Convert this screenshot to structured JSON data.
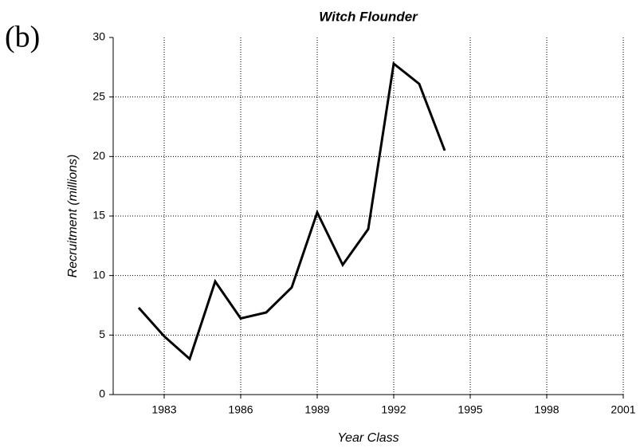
{
  "chart_data": {
    "type": "line",
    "title": "Witch Flounder",
    "annotation": "(b)",
    "x_label": "Year Class",
    "y_label": "Recruitment (millions)",
    "x": [
      1982,
      1983,
      1984,
      1985,
      1986,
      1987,
      1988,
      1989,
      1990,
      1991,
      1992,
      1993,
      1994
    ],
    "series": [
      {
        "name": "Witch Flounder",
        "color": "#000000",
        "values": [
          7.3,
          4.9,
          3.0,
          9.5,
          6.4,
          6.9,
          9.0,
          15.3,
          10.9,
          13.9,
          27.8,
          26.1,
          20.5
        ]
      }
    ],
    "xlim": [
      1981,
      2001
    ],
    "xticks": [
      1983,
      1986,
      1989,
      1992,
      1995,
      1998,
      2001
    ],
    "ylim": [
      0,
      30
    ],
    "yticks": [
      0,
      5,
      10,
      15,
      20,
      25,
      30
    ],
    "grid": true
  }
}
